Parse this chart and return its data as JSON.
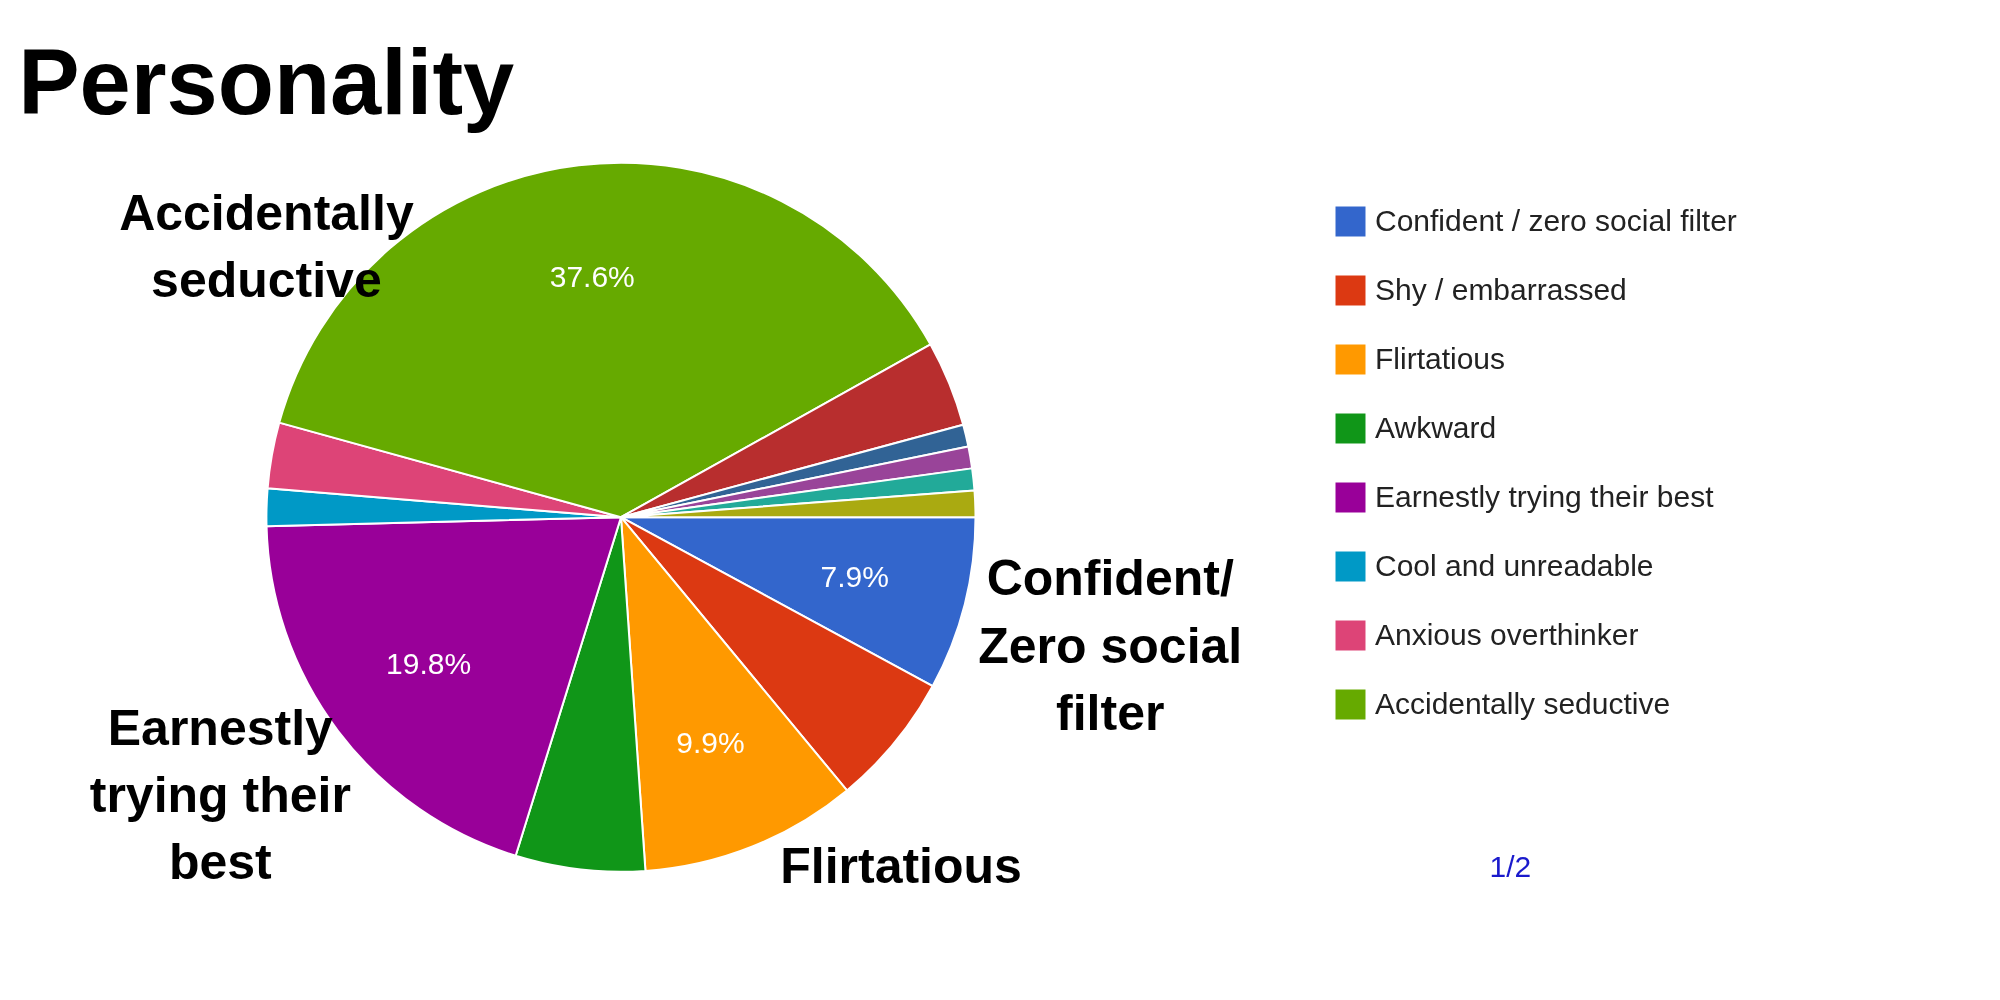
{
  "chart_data": {
    "type": "pie",
    "title": "Personality",
    "categories": [
      "Confident / zero social filter",
      "Shy / embarrassed",
      "Flirtatious",
      "Awkward",
      "Earnestly trying their best",
      "Cool and unreadable",
      "Anxious overthinker",
      "Accidentally seductive",
      null,
      null,
      null,
      null,
      null
    ],
    "values": [
      7.9,
      6.1,
      9.9,
      5.9,
      19.8,
      1.7,
      3.0,
      37.6,
      3.9,
      1.0,
      1.0,
      1.0,
      1.2
    ],
    "colors": [
      "#3366cc",
      "#dc3912",
      "#ff9900",
      "#109618",
      "#990099",
      "#0099c6",
      "#dd4477",
      "#66aa00",
      "#b82e2e",
      "#316395",
      "#994499",
      "#22aa99",
      "#aaaa11"
    ],
    "value_labels": [
      "7.9%",
      null,
      "9.9%",
      null,
      "19.8%",
      null,
      null,
      "37.6%",
      null,
      null,
      null,
      null,
      null
    ],
    "legend": "right",
    "annotations": [
      "Accidentally\nseductive",
      "Confident/\nZero social\nfilter",
      "Flirtatious",
      "Earnestly\ntrying their\nbest",
      "1/2"
    ]
  }
}
